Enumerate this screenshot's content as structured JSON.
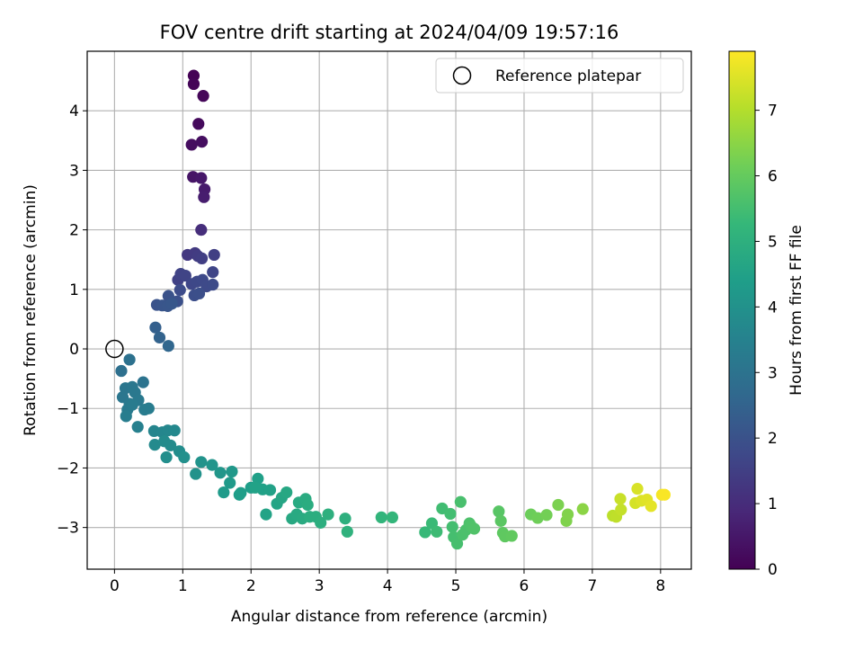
{
  "chart_data": {
    "type": "scatter",
    "title": "FOV centre drift starting at 2024/04/09 19:57:16",
    "xlabel": "Angular distance from reference (arcmin)",
    "ylabel": "Rotation from reference (arcmin)",
    "xlim": [
      -0.4,
      8.45
    ],
    "ylim": [
      -3.7,
      5.0
    ],
    "xticks": [
      0,
      1,
      2,
      3,
      4,
      5,
      6,
      7,
      8
    ],
    "yticks": [
      -3,
      -2,
      -1,
      0,
      1,
      2,
      3,
      4
    ],
    "grid": true,
    "legend": {
      "position": "top-right",
      "entries": [
        "Reference platepar"
      ]
    },
    "reference_point": {
      "x": 0,
      "y": 0,
      "label": "Reference platepar"
    },
    "colorbar": {
      "label": "Hours from first FF file",
      "range": [
        0,
        7.9
      ],
      "ticks": [
        0,
        1,
        2,
        3,
        4,
        5,
        6,
        7
      ],
      "colormap": "viridis"
    },
    "colormap_stops": [
      "#440154",
      "#482878",
      "#3e4989",
      "#31688e",
      "#26828e",
      "#1f9e89",
      "#35b779",
      "#6ece58",
      "#b5de2b",
      "#fde725"
    ],
    "points": [
      {
        "x": 1.16,
        "y": 4.59,
        "t": 0.03
      },
      {
        "x": 1.16,
        "y": 4.45,
        "t": 0.08
      },
      {
        "x": 1.3,
        "y": 4.25,
        "t": 0.13
      },
      {
        "x": 1.23,
        "y": 3.78,
        "t": 0.2
      },
      {
        "x": 1.13,
        "y": 3.43,
        "t": 0.26
      },
      {
        "x": 1.28,
        "y": 3.48,
        "t": 0.3
      },
      {
        "x": 1.15,
        "y": 2.89,
        "t": 0.45
      },
      {
        "x": 1.27,
        "y": 2.87,
        "t": 0.5
      },
      {
        "x": 1.32,
        "y": 2.68,
        "t": 0.58
      },
      {
        "x": 1.31,
        "y": 2.55,
        "t": 0.63
      },
      {
        "x": 1.27,
        "y": 2.0,
        "t": 1.05
      },
      {
        "x": 1.07,
        "y": 1.58,
        "t": 1.3
      },
      {
        "x": 1.18,
        "y": 1.61,
        "t": 1.35
      },
      {
        "x": 1.22,
        "y": 1.56,
        "t": 1.4
      },
      {
        "x": 1.28,
        "y": 1.52,
        "t": 1.45
      },
      {
        "x": 1.46,
        "y": 1.58,
        "t": 1.5
      },
      {
        "x": 0.93,
        "y": 1.16,
        "t": 1.55
      },
      {
        "x": 0.97,
        "y": 1.26,
        "t": 1.6
      },
      {
        "x": 1.04,
        "y": 1.23,
        "t": 1.62
      },
      {
        "x": 1.44,
        "y": 1.29,
        "t": 1.65
      },
      {
        "x": 1.13,
        "y": 1.09,
        "t": 1.7
      },
      {
        "x": 1.21,
        "y": 1.13,
        "t": 1.72
      },
      {
        "x": 1.29,
        "y": 1.16,
        "t": 1.75
      },
      {
        "x": 1.35,
        "y": 1.05,
        "t": 1.77
      },
      {
        "x": 1.44,
        "y": 1.08,
        "t": 1.8
      },
      {
        "x": 0.96,
        "y": 0.99,
        "t": 1.85
      },
      {
        "x": 1.17,
        "y": 0.9,
        "t": 1.9
      },
      {
        "x": 1.24,
        "y": 0.93,
        "t": 1.92
      },
      {
        "x": 0.92,
        "y": 0.8,
        "t": 1.95
      },
      {
        "x": 0.79,
        "y": 0.89,
        "t": 2.0
      },
      {
        "x": 0.62,
        "y": 0.74,
        "t": 2.05
      },
      {
        "x": 0.7,
        "y": 0.73,
        "t": 2.1
      },
      {
        "x": 0.78,
        "y": 0.72,
        "t": 2.12
      },
      {
        "x": 0.84,
        "y": 0.76,
        "t": 2.15
      },
      {
        "x": 0.6,
        "y": 0.36,
        "t": 2.4
      },
      {
        "x": 0.66,
        "y": 0.19,
        "t": 2.5
      },
      {
        "x": 0.79,
        "y": 0.05,
        "t": 2.6
      },
      {
        "x": 0.1,
        "y": -0.37,
        "t": 2.9
      },
      {
        "x": 0.22,
        "y": -0.18,
        "t": 2.95
      },
      {
        "x": 0.42,
        "y": -0.56,
        "t": 3.0
      },
      {
        "x": 0.12,
        "y": -0.81,
        "t": 3.1
      },
      {
        "x": 0.16,
        "y": -0.66,
        "t": 3.12
      },
      {
        "x": 0.26,
        "y": -0.64,
        "t": 3.15
      },
      {
        "x": 0.3,
        "y": -0.73,
        "t": 3.17
      },
      {
        "x": 0.35,
        "y": -0.86,
        "t": 3.2
      },
      {
        "x": 0.22,
        "y": -0.92,
        "t": 3.22
      },
      {
        "x": 0.19,
        "y": -1.02,
        "t": 3.25
      },
      {
        "x": 0.26,
        "y": -0.94,
        "t": 3.27
      },
      {
        "x": 0.44,
        "y": -1.02,
        "t": 3.3
      },
      {
        "x": 0.5,
        "y": -1.0,
        "t": 3.32
      },
      {
        "x": 0.17,
        "y": -1.13,
        "t": 3.35
      },
      {
        "x": 0.34,
        "y": -1.31,
        "t": 3.45
      },
      {
        "x": 0.58,
        "y": -1.38,
        "t": 3.6
      },
      {
        "x": 0.7,
        "y": -1.4,
        "t": 3.65
      },
      {
        "x": 0.78,
        "y": -1.37,
        "t": 3.68
      },
      {
        "x": 0.88,
        "y": -1.37,
        "t": 3.7
      },
      {
        "x": 0.59,
        "y": -1.61,
        "t": 3.75
      },
      {
        "x": 0.73,
        "y": -1.55,
        "t": 3.78
      },
      {
        "x": 0.82,
        "y": -1.62,
        "t": 3.8
      },
      {
        "x": 0.95,
        "y": -1.72,
        "t": 3.85
      },
      {
        "x": 0.76,
        "y": -1.82,
        "t": 3.9
      },
      {
        "x": 1.02,
        "y": -1.82,
        "t": 3.95
      },
      {
        "x": 1.19,
        "y": -2.1,
        "t": 4.0
      },
      {
        "x": 1.27,
        "y": -1.9,
        "t": 4.05
      },
      {
        "x": 1.43,
        "y": -1.95,
        "t": 4.1
      },
      {
        "x": 1.55,
        "y": -2.08,
        "t": 4.15
      },
      {
        "x": 1.72,
        "y": -2.06,
        "t": 4.2
      },
      {
        "x": 1.69,
        "y": -2.25,
        "t": 4.25
      },
      {
        "x": 1.6,
        "y": -2.41,
        "t": 4.3
      },
      {
        "x": 1.83,
        "y": -2.45,
        "t": 4.35
      },
      {
        "x": 1.85,
        "y": -2.42,
        "t": 4.38
      },
      {
        "x": 2.0,
        "y": -2.33,
        "t": 4.4
      },
      {
        "x": 2.1,
        "y": -2.18,
        "t": 4.45
      },
      {
        "x": 2.17,
        "y": -2.36,
        "t": 4.48
      },
      {
        "x": 2.28,
        "y": -2.37,
        "t": 4.5
      },
      {
        "x": 2.06,
        "y": -2.33,
        "t": 4.52
      },
      {
        "x": 2.22,
        "y": -2.78,
        "t": 4.55
      },
      {
        "x": 2.38,
        "y": -2.6,
        "t": 4.6
      },
      {
        "x": 2.45,
        "y": -2.5,
        "t": 4.65
      },
      {
        "x": 2.52,
        "y": -2.41,
        "t": 4.7
      },
      {
        "x": 2.6,
        "y": -2.85,
        "t": 4.75
      },
      {
        "x": 2.67,
        "y": -2.78,
        "t": 4.78
      },
      {
        "x": 2.7,
        "y": -2.58,
        "t": 4.8
      },
      {
        "x": 2.75,
        "y": -2.85,
        "t": 4.82
      },
      {
        "x": 2.8,
        "y": -2.52,
        "t": 4.85
      },
      {
        "x": 2.83,
        "y": -2.62,
        "t": 4.87
      },
      {
        "x": 2.86,
        "y": -2.82,
        "t": 4.9
      },
      {
        "x": 2.95,
        "y": -2.82,
        "t": 4.92
      },
      {
        "x": 3.02,
        "y": -2.92,
        "t": 4.95
      },
      {
        "x": 3.13,
        "y": -2.78,
        "t": 4.97
      },
      {
        "x": 3.38,
        "y": -2.85,
        "t": 5.0
      },
      {
        "x": 3.41,
        "y": -3.07,
        "t": 5.05
      },
      {
        "x": 3.91,
        "y": -2.83,
        "t": 5.15
      },
      {
        "x": 4.07,
        "y": -2.83,
        "t": 5.2
      },
      {
        "x": 4.55,
        "y": -3.08,
        "t": 5.3
      },
      {
        "x": 4.65,
        "y": -2.93,
        "t": 5.35
      },
      {
        "x": 4.72,
        "y": -3.07,
        "t": 5.4
      },
      {
        "x": 4.8,
        "y": -2.68,
        "t": 5.45
      },
      {
        "x": 4.92,
        "y": -2.77,
        "t": 5.48
      },
      {
        "x": 4.95,
        "y": -2.99,
        "t": 5.5
      },
      {
        "x": 4.97,
        "y": -3.16,
        "t": 5.52
      },
      {
        "x": 5.02,
        "y": -3.27,
        "t": 5.55
      },
      {
        "x": 5.07,
        "y": -2.57,
        "t": 5.57
      },
      {
        "x": 5.1,
        "y": -3.12,
        "t": 5.6
      },
      {
        "x": 5.15,
        "y": -3.04,
        "t": 5.62
      },
      {
        "x": 5.2,
        "y": -2.93,
        "t": 5.65
      },
      {
        "x": 5.22,
        "y": -2.97,
        "t": 5.67
      },
      {
        "x": 5.27,
        "y": -3.02,
        "t": 5.7
      },
      {
        "x": 5.63,
        "y": -2.73,
        "t": 5.8
      },
      {
        "x": 5.66,
        "y": -2.89,
        "t": 5.85
      },
      {
        "x": 5.69,
        "y": -3.09,
        "t": 5.9
      },
      {
        "x": 5.72,
        "y": -3.15,
        "t": 5.92
      },
      {
        "x": 5.82,
        "y": -3.14,
        "t": 5.95
      },
      {
        "x": 6.1,
        "y": -2.78,
        "t": 6.1
      },
      {
        "x": 6.2,
        "y": -2.84,
        "t": 6.15
      },
      {
        "x": 6.33,
        "y": -2.79,
        "t": 6.2
      },
      {
        "x": 6.5,
        "y": -2.62,
        "t": 6.3
      },
      {
        "x": 6.62,
        "y": -2.89,
        "t": 6.35
      },
      {
        "x": 6.64,
        "y": -2.78,
        "t": 6.38
      },
      {
        "x": 6.86,
        "y": -2.69,
        "t": 6.5
      },
      {
        "x": 7.3,
        "y": -2.8,
        "t": 7.1
      },
      {
        "x": 7.35,
        "y": -2.82,
        "t": 7.15
      },
      {
        "x": 7.42,
        "y": -2.7,
        "t": 7.2
      },
      {
        "x": 7.41,
        "y": -2.52,
        "t": 7.25
      },
      {
        "x": 7.63,
        "y": -2.59,
        "t": 7.4
      },
      {
        "x": 7.66,
        "y": -2.35,
        "t": 7.45
      },
      {
        "x": 7.72,
        "y": -2.55,
        "t": 7.5
      },
      {
        "x": 7.8,
        "y": -2.53,
        "t": 7.55
      },
      {
        "x": 7.86,
        "y": -2.64,
        "t": 7.6
      },
      {
        "x": 8.02,
        "y": -2.45,
        "t": 7.8
      },
      {
        "x": 8.06,
        "y": -2.45,
        "t": 7.85
      }
    ]
  }
}
